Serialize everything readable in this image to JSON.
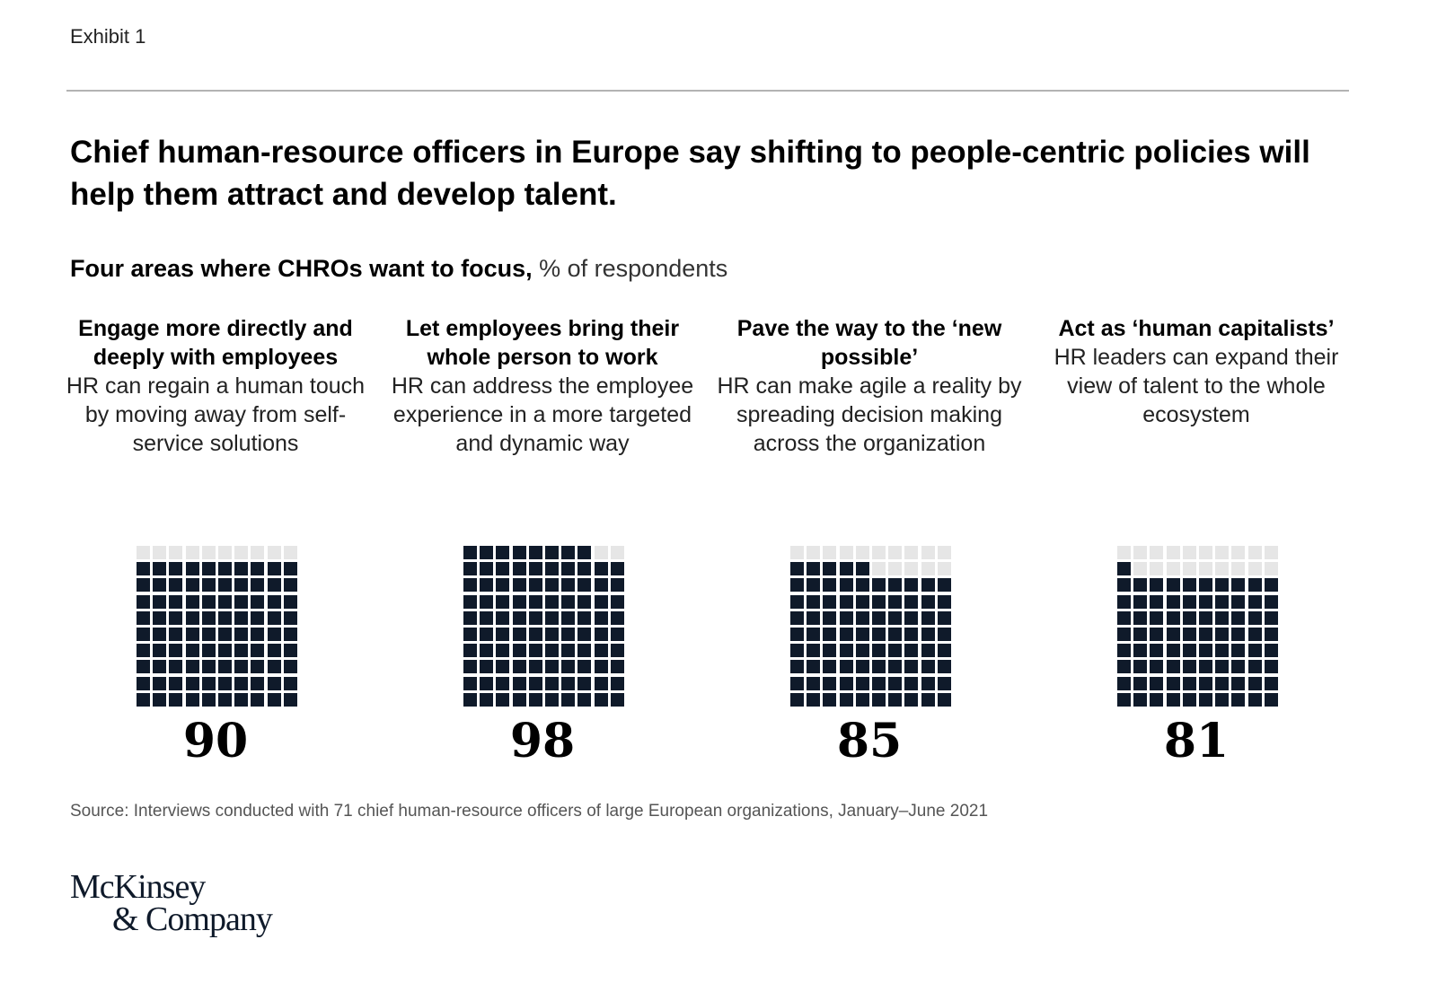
{
  "exhibit_label": "Exhibit 1",
  "title": "Chief human-resource officers in Europe say shifting to people-centric policies will help them attract and develop talent.",
  "colors": {
    "filled": "#0f1a2a",
    "empty": "#e6e6e6"
  },
  "chart_data": {
    "type": "waffle",
    "title": "Four areas where CHROs want to focus,",
    "unit": "% of respondents",
    "grid": "10x10",
    "panels": [
      {
        "heading": "Engage more directly and deeply with employees",
        "description": "HR can regain a human touch by moving away from self-service solutions",
        "value": 90,
        "label": "90"
      },
      {
        "heading": "Let employees bring their whole person to work",
        "description": "HR can address the employee experience in a more targeted and dynamic way",
        "value": 98,
        "label": "98"
      },
      {
        "heading": "Pave the way to the ‘new possible’",
        "description": "HR can make agile a reality by spreading decision making across the organization",
        "value": 85,
        "label": "85"
      },
      {
        "heading": "Act as ‘human capitalists’",
        "description": "HR leaders can expand their view of talent to the whole ecosystem",
        "value": 81,
        "label": "81"
      }
    ]
  },
  "source": "Source: Interviews conducted with 71 chief human-resource officers of large European organizations, January–June 2021",
  "logo": {
    "line1": "McKinsey",
    "line2": "& Company"
  }
}
